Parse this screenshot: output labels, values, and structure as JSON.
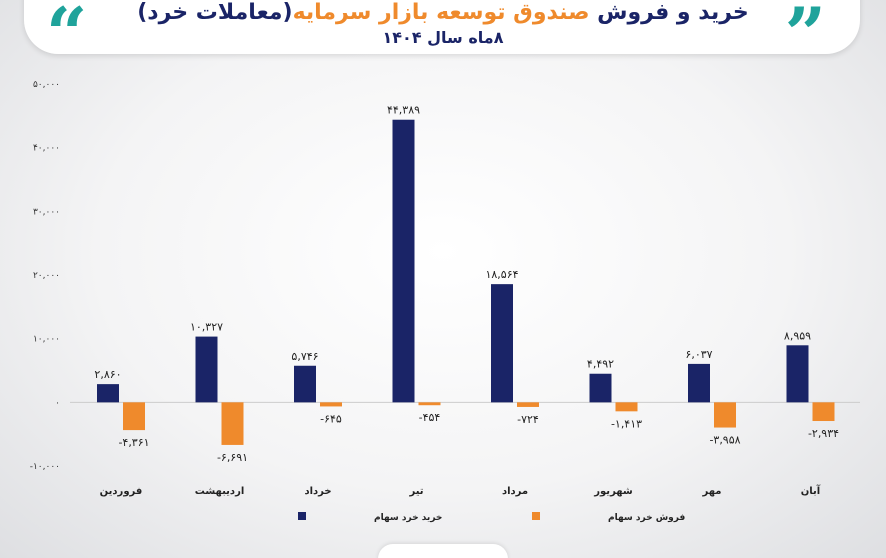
{
  "header": {
    "title_part1": "خرید و فروش ",
    "title_accent": "صندوق توسعه بازار سرمایه",
    "title_part2": "(معاملات خرد)",
    "subtitle": "۸ماه سال ۱۴۰۴",
    "quote_open": "“",
    "quote_close": "”"
  },
  "colors": {
    "buy": "#1a2467",
    "sell": "#ef8a2c",
    "title_accent": "#ef8a2c",
    "quote": "#1fa39b"
  },
  "chart_data": {
    "type": "bar",
    "categories": [
      "فروردین",
      "اردیبهشت",
      "خرداد",
      "تیر",
      "مرداد",
      "شهریور",
      "مهر",
      "آبان"
    ],
    "series": [
      {
        "name": "خرید خرد سهام",
        "color": "#1a2467",
        "values": [
          2860,
          10327,
          5746,
          44389,
          18564,
          4492,
          6037,
          8959
        ],
        "labels": [
          "۲,۸۶۰",
          "۱۰,۳۲۷",
          "۵,۷۴۶",
          "۴۴,۳۸۹",
          "۱۸,۵۶۴",
          "۴,۴۹۲",
          "۶,۰۳۷",
          "۸,۹۵۹"
        ]
      },
      {
        "name": "فروش خرد سهام",
        "color": "#ef8a2c",
        "values": [
          -4361,
          -6691,
          -645,
          -454,
          -724,
          -1413,
          -3958,
          -2934
        ],
        "labels": [
          "-۴,۳۶۱",
          "-۶,۶۹۱",
          "-۶۴۵",
          "-۴۵۴",
          "-۷۲۴",
          "-۱,۴۱۳",
          "-۳,۹۵۸",
          "-۲,۹۳۴"
        ]
      }
    ],
    "yticks": [
      50000,
      40000,
      30000,
      20000,
      10000,
      0,
      -10000
    ],
    "ytick_labels": [
      "۵۰,۰۰۰",
      "۴۰,۰۰۰",
      "۳۰,۰۰۰",
      "۲۰,۰۰۰",
      "۱۰,۰۰۰",
      "۰",
      "-۱۰,۰۰۰"
    ],
    "ylim": [
      -10000,
      50000
    ],
    "grid": false,
    "legend_position": "bottom-center"
  }
}
